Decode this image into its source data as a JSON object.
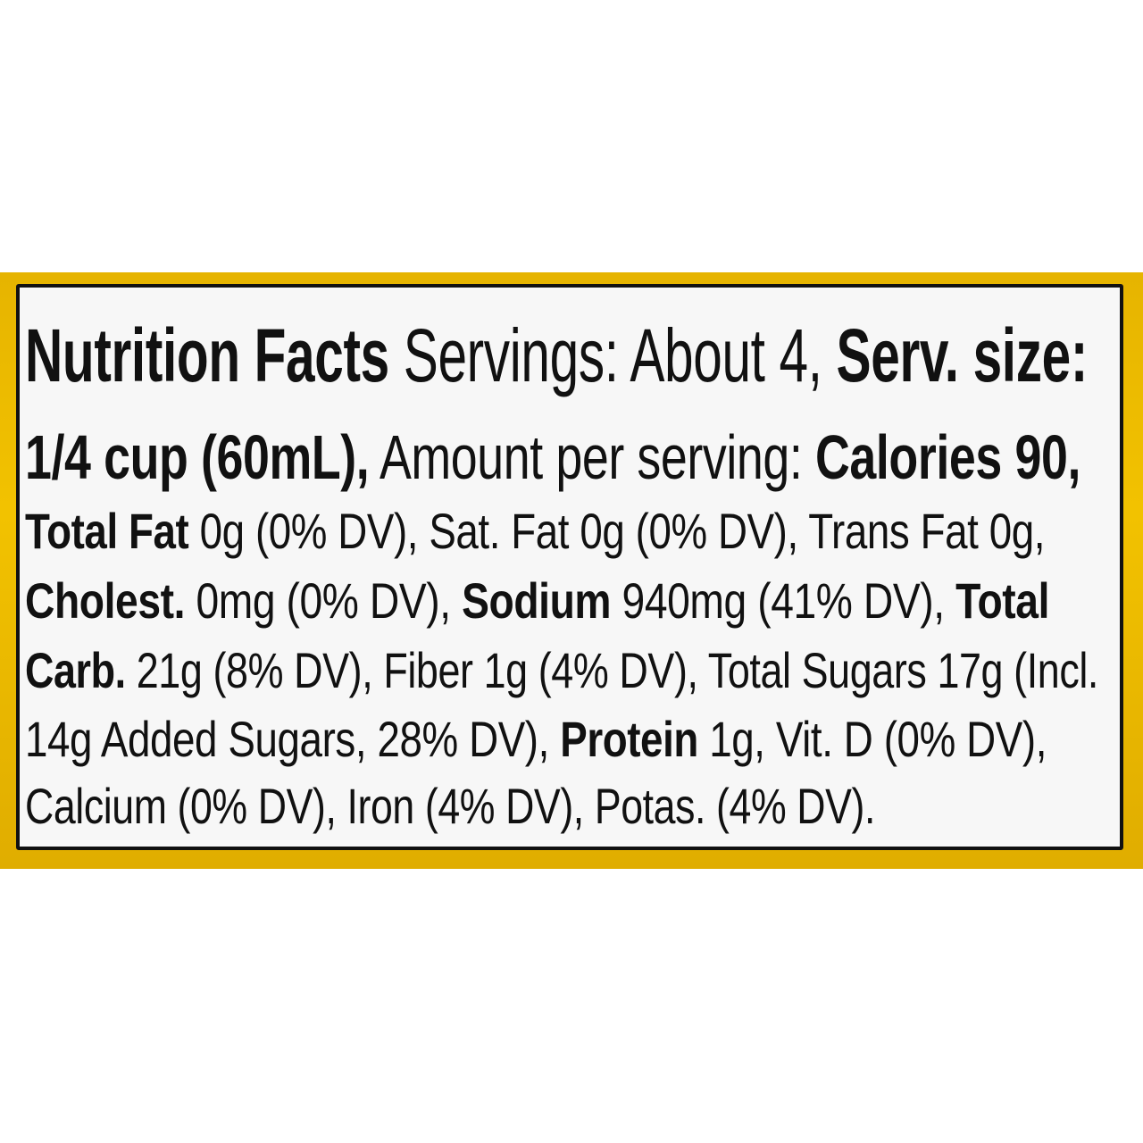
{
  "label": {
    "background_color": "#f7f7f7",
    "band_color": "#f2c200",
    "lines": [
      [
        {
          "t": "Nutrition Facts",
          "b": true
        },
        {
          "t": " Servings: About 4, ",
          "b": false
        },
        {
          "t": "Serv. size:",
          "b": true
        }
      ],
      [
        {
          "t": "1/4 cup (60mL),",
          "b": true
        },
        {
          "t": " Amount per serving: ",
          "b": false
        },
        {
          "t": "Calories 90,",
          "b": true
        }
      ],
      [
        {
          "t": "Total Fat",
          "b": true
        },
        {
          "t": " 0g (0% DV), Sat. Fat 0g (0% DV), Trans Fat 0g,",
          "b": false
        }
      ],
      [
        {
          "t": "Cholest.",
          "b": true
        },
        {
          "t": " 0mg (0% DV), ",
          "b": false
        },
        {
          "t": "Sodium",
          "b": true
        },
        {
          "t": " 940mg (41% DV), ",
          "b": false
        },
        {
          "t": "Total",
          "b": true
        }
      ],
      [
        {
          "t": "Carb.",
          "b": true
        },
        {
          "t": " 21g (8% DV), Fiber 1g (4% DV), Total Sugars 17g (Incl.",
          "b": false
        }
      ],
      [
        {
          "t": "14g Added Sugars, 28% DV), ",
          "b": false
        },
        {
          "t": "Protein",
          "b": true
        },
        {
          "t": " 1g, Vit. D (0% DV),",
          "b": false
        }
      ],
      [
        {
          "t": "Calcium (0% DV), Iron (4% DV), Potas. (4% DV).",
          "b": false
        }
      ]
    ]
  }
}
